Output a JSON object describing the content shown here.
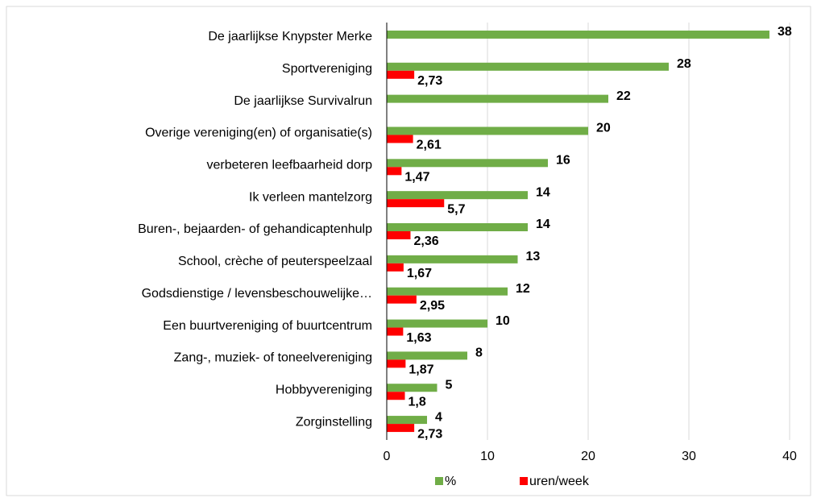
{
  "chart_data": {
    "type": "hbar",
    "categories": [
      "De jaarlijkse Knypster Merke",
      "Sportvereniging",
      "De jaarlijkse Survivalrun",
      "Overige vereniging(en) of organisatie(s)",
      "verbeteren leefbaarheid dorp",
      "Ik verleen mantelzorg",
      "Buren-, bejaarden- of gehandicaptenhulp",
      "School, crèche of peuterspeelzaal",
      "Godsdienstige / levensbeschouwelijke…",
      "Een buurtvereniging of buurtcentrum",
      "Zang-, muziek- of toneelvereniging",
      "Hobbyvereniging",
      "Zorginstelling"
    ],
    "series": [
      {
        "name": "%",
        "color": "#70ad47",
        "values": [
          38,
          28,
          22,
          20,
          16,
          14,
          14,
          13,
          12,
          10,
          8,
          5,
          4
        ]
      },
      {
        "name": "uren/week",
        "color": "#ff0000",
        "values": [
          null,
          2.73,
          null,
          2.61,
          1.47,
          5.7,
          2.36,
          1.67,
          2.95,
          1.63,
          1.87,
          1.8,
          2.73
        ],
        "value_labels": [
          null,
          "2,73",
          null,
          "2,61",
          "1,47",
          "5,7",
          "2,36",
          "1,67",
          "2,95",
          "1,63",
          "1,87",
          "1,8",
          "2,73"
        ]
      }
    ],
    "xlim": [
      0,
      40
    ],
    "xticks": [
      0,
      10,
      20,
      30,
      40
    ],
    "grid": true,
    "legend": "bottom"
  }
}
